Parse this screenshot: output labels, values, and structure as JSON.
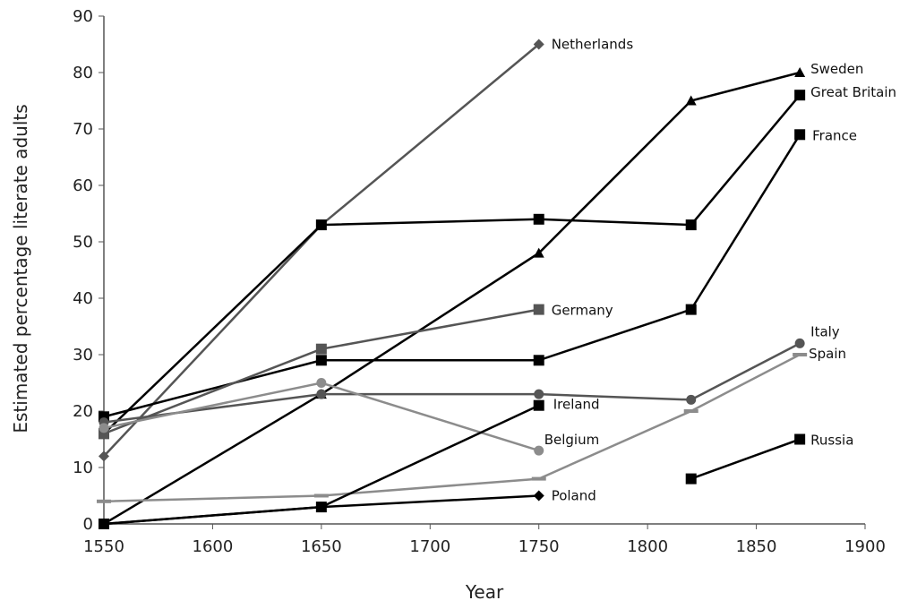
{
  "chart_data": {
    "type": "line",
    "title": "",
    "xlabel": "Year",
    "ylabel": "Estimated percentage literate adults",
    "xlim": [
      1550,
      1900
    ],
    "ylim": [
      0,
      90
    ],
    "xticks": [
      1550,
      1600,
      1650,
      1700,
      1750,
      1800,
      1850,
      1900
    ],
    "yticks": [
      0,
      10,
      20,
      30,
      40,
      50,
      60,
      70,
      80,
      90
    ],
    "grid": false,
    "legend": "inline labels at line ends",
    "series": [
      {
        "name": "Netherlands",
        "color": "#555555",
        "marker": "diamond",
        "x": [
          1550,
          1650,
          1750
        ],
        "y": [
          12,
          53,
          85
        ]
      },
      {
        "name": "Sweden",
        "color": "#000000",
        "marker": "triangle",
        "x": [
          1550,
          1650,
          1750,
          1820,
          1870
        ],
        "y": [
          0,
          23,
          48,
          75,
          80
        ]
      },
      {
        "name": "Great Britain",
        "color": "#000000",
        "marker": "square",
        "x": [
          1550,
          1650,
          1750,
          1820,
          1870
        ],
        "y": [
          16,
          53,
          54,
          53,
          76
        ]
      },
      {
        "name": "France",
        "color": "#000000",
        "marker": "square",
        "x": [
          1550,
          1650,
          1750,
          1820,
          1870
        ],
        "y": [
          19,
          29,
          29,
          38,
          69
        ]
      },
      {
        "name": "Germany",
        "color": "#555555",
        "marker": "square",
        "x": [
          1550,
          1650,
          1750
        ],
        "y": [
          16,
          31,
          38
        ]
      },
      {
        "name": "Italy",
        "color": "#555555",
        "marker": "circle",
        "x": [
          1550,
          1650,
          1750,
          1820,
          1870
        ],
        "y": [
          18,
          23,
          23,
          22,
          32
        ]
      },
      {
        "name": "Spain",
        "color": "#8c8c8c",
        "marker": "dash",
        "x": [
          1550,
          1650,
          1750,
          1820,
          1870
        ],
        "y": [
          4,
          5,
          8,
          20,
          30
        ]
      },
      {
        "name": "Belgium",
        "color": "#8c8c8c",
        "marker": "circle",
        "x": [
          1550,
          1650,
          1750
        ],
        "y": [
          17,
          25,
          13
        ]
      },
      {
        "name": "Ireland",
        "color": "#000000",
        "marker": "square",
        "x": [
          1550,
          1650,
          1750
        ],
        "y": [
          0,
          3,
          21
        ]
      },
      {
        "name": "Poland",
        "color": "#000000",
        "marker": "diamond",
        "x": [
          1550,
          1650,
          1750
        ],
        "y": [
          0,
          3,
          5
        ]
      },
      {
        "name": "Russia",
        "color": "#000000",
        "marker": "square",
        "x": [
          1820,
          1870
        ],
        "y": [
          8,
          15
        ]
      }
    ]
  }
}
